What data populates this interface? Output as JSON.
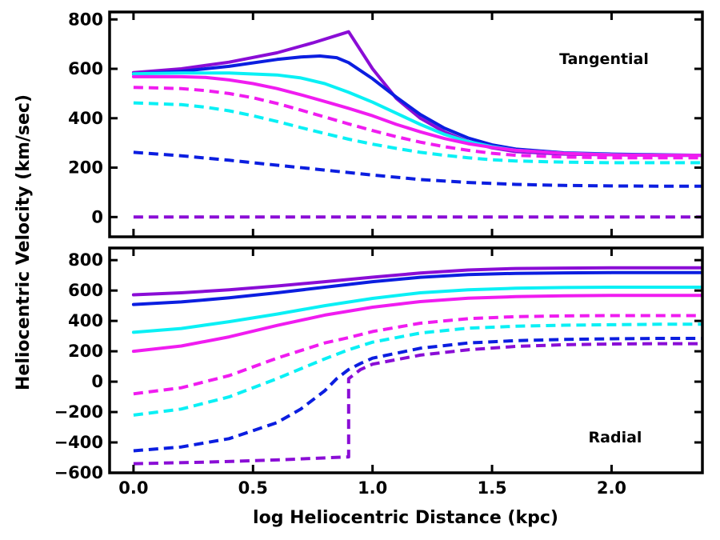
{
  "chart_data": [
    {
      "type": "line",
      "panel": "top",
      "annotation": "Tangential",
      "xlim": [
        -0.1,
        2.38
      ],
      "ylim": [
        -80,
        830
      ],
      "yticks": [
        0,
        200,
        400,
        600,
        800
      ],
      "series": [
        {
          "name": "violet-solid",
          "color": "#8a0dd6",
          "style": "solid",
          "x": [
            0,
            0.2,
            0.4,
            0.6,
            0.75,
            0.85,
            0.9,
            1.0,
            1.1,
            1.2,
            1.3,
            1.4,
            1.5,
            1.6,
            1.8,
            2.0,
            2.2,
            2.38
          ],
          "y": [
            585,
            600,
            627,
            665,
            705,
            735,
            750,
            600,
            480,
            400,
            345,
            305,
            280,
            265,
            255,
            252,
            250,
            250
          ]
        },
        {
          "name": "blue-solid",
          "color": "#0b1ee0",
          "style": "solid",
          "x": [
            0,
            0.2,
            0.4,
            0.6,
            0.7,
            0.78,
            0.85,
            0.9,
            1.0,
            1.1,
            1.2,
            1.3,
            1.4,
            1.5,
            1.6,
            1.8,
            2.0,
            2.2,
            2.38
          ],
          "y": [
            578,
            590,
            610,
            638,
            648,
            652,
            645,
            625,
            560,
            485,
            415,
            360,
            320,
            292,
            275,
            260,
            255,
            252,
            250
          ]
        },
        {
          "name": "cyan-solid",
          "color": "#0af0f5",
          "style": "solid",
          "x": [
            0,
            0.2,
            0.4,
            0.6,
            0.7,
            0.8,
            0.9,
            1.0,
            1.1,
            1.2,
            1.3,
            1.4,
            1.5,
            1.6,
            1.8,
            2.0,
            2.2,
            2.38
          ],
          "y": [
            580,
            583,
            583,
            575,
            563,
            540,
            505,
            465,
            420,
            375,
            335,
            305,
            285,
            270,
            258,
            253,
            250,
            250
          ]
        },
        {
          "name": "magenta-solid",
          "color": "#f01cf0",
          "style": "solid",
          "x": [
            0,
            0.2,
            0.3,
            0.4,
            0.5,
            0.6,
            0.7,
            0.8,
            0.9,
            1.0,
            1.1,
            1.2,
            1.3,
            1.4,
            1.5,
            1.6,
            1.8,
            2.0,
            2.2,
            2.38
          ],
          "y": [
            568,
            568,
            565,
            555,
            540,
            520,
            495,
            468,
            440,
            410,
            375,
            345,
            318,
            297,
            282,
            270,
            258,
            252,
            250,
            250
          ]
        },
        {
          "name": "magenta-dashed",
          "color": "#f01cf0",
          "style": "dashed",
          "x": [
            0,
            0.2,
            0.3,
            0.4,
            0.5,
            0.6,
            0.7,
            0.8,
            0.9,
            1.0,
            1.1,
            1.2,
            1.3,
            1.4,
            1.5,
            1.6,
            1.8,
            2.0,
            2.2,
            2.38
          ],
          "y": [
            525,
            520,
            512,
            500,
            483,
            460,
            433,
            405,
            377,
            350,
            325,
            303,
            285,
            270,
            258,
            250,
            243,
            240,
            240,
            240
          ]
        },
        {
          "name": "cyan-dashed",
          "color": "#0af0f5",
          "style": "dashed",
          "x": [
            0,
            0.2,
            0.3,
            0.4,
            0.5,
            0.6,
            0.7,
            0.8,
            0.9,
            1.0,
            1.1,
            1.2,
            1.3,
            1.4,
            1.5,
            1.6,
            1.8,
            2.0,
            2.2,
            2.38
          ],
          "y": [
            462,
            455,
            445,
            430,
            410,
            387,
            362,
            338,
            315,
            295,
            278,
            262,
            250,
            240,
            232,
            227,
            222,
            220,
            220,
            220
          ]
        },
        {
          "name": "blue-dashed",
          "color": "#0b1ee0",
          "style": "dashed",
          "x": [
            0,
            0.2,
            0.4,
            0.6,
            0.8,
            1.0,
            1.2,
            1.4,
            1.6,
            1.8,
            2.0,
            2.2,
            2.38
          ],
          "y": [
            262,
            248,
            230,
            210,
            190,
            170,
            152,
            140,
            132,
            128,
            126,
            125,
            125
          ]
        },
        {
          "name": "violet-dashed",
          "color": "#8a0dd6",
          "style": "dashed",
          "x": [
            0,
            2.38
          ],
          "y": [
            0,
            0
          ]
        }
      ]
    },
    {
      "type": "line",
      "panel": "bottom",
      "annotation": "Radial",
      "xlabel": "log Heliocentric Distance (kpc)",
      "xlim": [
        -0.1,
        2.38
      ],
      "ylim": [
        -600,
        880
      ],
      "xticks": [
        "0.0",
        "0.5",
        "1.0",
        "1.5",
        "2.0"
      ],
      "yticks": [
        -600,
        -400,
        -200,
        0,
        200,
        400,
        600,
        800
      ],
      "series": [
        {
          "name": "violet-solid",
          "color": "#8a0dd6",
          "style": "solid",
          "x": [
            0,
            0.2,
            0.4,
            0.6,
            0.8,
            1.0,
            1.2,
            1.4,
            1.6,
            1.8,
            2.0,
            2.2,
            2.38
          ],
          "y": [
            572,
            585,
            605,
            630,
            658,
            688,
            715,
            735,
            745,
            748,
            750,
            750,
            750
          ]
        },
        {
          "name": "blue-solid",
          "color": "#0b1ee0",
          "style": "solid",
          "x": [
            0,
            0.2,
            0.4,
            0.6,
            0.8,
            1.0,
            1.2,
            1.4,
            1.6,
            1.8,
            2.0,
            2.2,
            2.38
          ],
          "y": [
            508,
            525,
            552,
            585,
            622,
            658,
            687,
            705,
            713,
            716,
            718,
            718,
            718
          ]
        },
        {
          "name": "cyan-solid",
          "color": "#0af0f5",
          "style": "solid",
          "x": [
            0,
            0.2,
            0.4,
            0.6,
            0.8,
            1.0,
            1.2,
            1.4,
            1.6,
            1.8,
            2.0,
            2.2,
            2.38
          ],
          "y": [
            325,
            350,
            395,
            445,
            500,
            548,
            585,
            605,
            615,
            620,
            622,
            622,
            622
          ]
        },
        {
          "name": "magenta-solid",
          "color": "#f01cf0",
          "style": "solid",
          "x": [
            0,
            0.2,
            0.4,
            0.6,
            0.8,
            1.0,
            1.2,
            1.4,
            1.6,
            1.8,
            2.0,
            2.2,
            2.38
          ],
          "y": [
            200,
            235,
            295,
            370,
            438,
            490,
            527,
            550,
            560,
            565,
            568,
            568,
            568
          ]
        },
        {
          "name": "magenta-dashed",
          "color": "#f01cf0",
          "style": "dashed",
          "x": [
            0,
            0.2,
            0.4,
            0.6,
            0.8,
            0.9,
            1.0,
            1.2,
            1.4,
            1.6,
            1.8,
            2.0,
            2.2,
            2.38
          ],
          "y": [
            -80,
            -40,
            40,
            155,
            255,
            290,
            330,
            385,
            415,
            428,
            433,
            435,
            435,
            435
          ]
        },
        {
          "name": "cyan-dashed",
          "color": "#0af0f5",
          "style": "dashed",
          "x": [
            0,
            0.2,
            0.4,
            0.6,
            0.8,
            0.9,
            1.0,
            1.2,
            1.4,
            1.6,
            1.8,
            2.0,
            2.2,
            2.38
          ],
          "y": [
            -220,
            -180,
            -100,
            20,
            150,
            210,
            260,
            320,
            352,
            365,
            372,
            375,
            378,
            378
          ]
        },
        {
          "name": "blue-dashed",
          "color": "#0b1ee0",
          "style": "dashed",
          "x": [
            0,
            0.2,
            0.4,
            0.6,
            0.7,
            0.8,
            0.85,
            0.9,
            0.95,
            1.0,
            1.2,
            1.4,
            1.6,
            1.8,
            2.0,
            2.2,
            2.38
          ],
          "y": [
            -455,
            -430,
            -375,
            -270,
            -180,
            -60,
            20,
            80,
            120,
            155,
            220,
            255,
            270,
            278,
            282,
            285,
            285
          ]
        },
        {
          "name": "violet-dashed",
          "color": "#8a0dd6",
          "style": "dashed",
          "x": [
            0,
            0.3,
            0.6,
            0.9,
            0.9,
            0.95,
            1.0,
            1.2,
            1.4,
            1.6,
            1.8,
            2.0,
            2.2,
            2.38
          ],
          "y": [
            -540,
            -530,
            -515,
            -495,
            20,
            80,
            115,
            175,
            210,
            232,
            243,
            248,
            250,
            250
          ]
        }
      ]
    }
  ],
  "ylabel": "Heliocentric Velocity (km/sec)"
}
